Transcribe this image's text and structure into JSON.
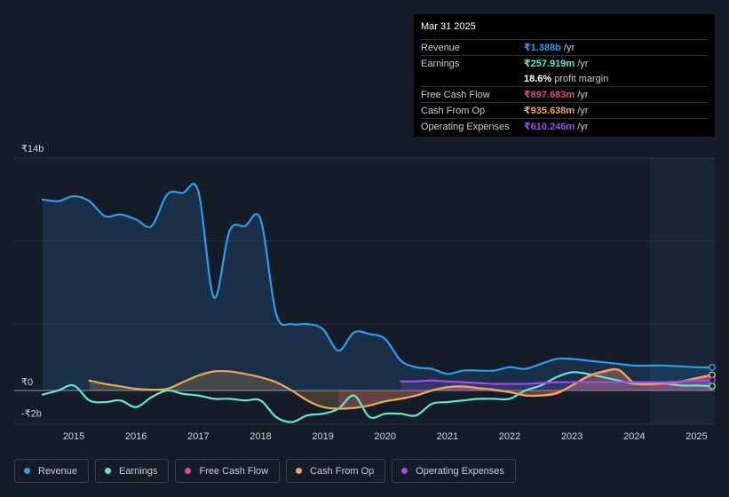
{
  "tooltip": {
    "date": "Mar 31 2025",
    "rows": [
      {
        "label": "Revenue",
        "value": "₹1.388b",
        "unit": "/yr",
        "color": "#2d9bf0"
      },
      {
        "label": "Earnings",
        "value": "₹257.919m",
        "unit": "/yr",
        "color": "#5ee8cf"
      },
      {
        "label": "",
        "value": "18.6%",
        "unit": "profit margin",
        "color": "#ffffff"
      },
      {
        "label": "Free Cash Flow",
        "value": "₹897.683m",
        "unit": "/yr",
        "color": "#d94f86"
      },
      {
        "label": "Cash From Op",
        "value": "₹935.638m",
        "unit": "/yr",
        "color": "#e8a85a"
      },
      {
        "label": "Operating Expenses",
        "value": "₹610.246m",
        "unit": "/yr",
        "color": "#9b4de8"
      }
    ]
  },
  "legend": [
    {
      "label": "Revenue",
      "color": "#2d9bf0"
    },
    {
      "label": "Earnings",
      "color": "#5ee8cf"
    },
    {
      "label": "Free Cash Flow",
      "color": "#d94f86"
    },
    {
      "label": "Cash From Op",
      "color": "#e8a85a"
    },
    {
      "label": "Operating Expenses",
      "color": "#9b4de8"
    }
  ],
  "chart_data": {
    "type": "line",
    "title": "",
    "unit": "₹ billions",
    "y_tick_labels": [
      "₹14b",
      "₹0",
      "-₹2b"
    ],
    "y_ticks": [
      14,
      0,
      -2
    ],
    "ylim": [
      -2,
      14
    ],
    "x_tick_labels": [
      "2015",
      "2016",
      "2017",
      "2018",
      "2019",
      "2020",
      "2021",
      "2022",
      "2023",
      "2024",
      "2025"
    ],
    "x_ticks": [
      2015,
      2016,
      2017,
      2018,
      2019,
      2020,
      2021,
      2022,
      2023,
      2024,
      2025
    ],
    "xlim": [
      2014.5,
      2025.25
    ],
    "highlight_start": 2024.25,
    "series": [
      {
        "name": "Revenue",
        "color": "#2d9bf0",
        "fill": true,
        "points": [
          [
            2014.5,
            11.5
          ],
          [
            2014.75,
            11.4
          ],
          [
            2015.0,
            11.7
          ],
          [
            2015.25,
            11.4
          ],
          [
            2015.5,
            10.5
          ],
          [
            2015.75,
            10.6
          ],
          [
            2016.0,
            10.3
          ],
          [
            2016.25,
            9.9
          ],
          [
            2016.5,
            11.8
          ],
          [
            2016.75,
            11.9
          ],
          [
            2017.0,
            12.0
          ],
          [
            2017.25,
            5.6
          ],
          [
            2017.5,
            9.6
          ],
          [
            2017.75,
            9.9
          ],
          [
            2018.0,
            10.3
          ],
          [
            2018.25,
            4.6
          ],
          [
            2018.5,
            4.0
          ],
          [
            2018.75,
            4.0
          ],
          [
            2019.0,
            3.7
          ],
          [
            2019.25,
            2.4
          ],
          [
            2019.5,
            3.5
          ],
          [
            2019.75,
            3.4
          ],
          [
            2020.0,
            3.1
          ],
          [
            2020.25,
            1.8
          ],
          [
            2020.5,
            1.4
          ],
          [
            2020.75,
            1.3
          ],
          [
            2021.0,
            1.0
          ],
          [
            2021.25,
            1.2
          ],
          [
            2021.5,
            1.2
          ],
          [
            2021.75,
            1.2
          ],
          [
            2022.0,
            1.4
          ],
          [
            2022.25,
            1.3
          ],
          [
            2022.5,
            1.6
          ],
          [
            2022.75,
            1.9
          ],
          [
            2023.0,
            1.9
          ],
          [
            2023.25,
            1.8
          ],
          [
            2023.5,
            1.7
          ],
          [
            2023.75,
            1.6
          ],
          [
            2024.0,
            1.5
          ],
          [
            2024.25,
            1.5
          ],
          [
            2024.5,
            1.5
          ],
          [
            2024.75,
            1.45
          ],
          [
            2025.0,
            1.4
          ],
          [
            2025.25,
            1.39
          ]
        ]
      },
      {
        "name": "Earnings",
        "color": "#5ee8cf",
        "fill": false,
        "points": [
          [
            2014.5,
            -0.25
          ],
          [
            2014.75,
            0.0
          ],
          [
            2015.0,
            0.3
          ],
          [
            2015.25,
            -0.6
          ],
          [
            2015.5,
            -0.7
          ],
          [
            2015.75,
            -0.6
          ],
          [
            2016.0,
            -1.0
          ],
          [
            2016.25,
            -0.4
          ],
          [
            2016.5,
            0.0
          ],
          [
            2016.75,
            -0.2
          ],
          [
            2017.0,
            -0.3
          ],
          [
            2017.25,
            -0.5
          ],
          [
            2017.5,
            -0.5
          ],
          [
            2017.75,
            -0.6
          ],
          [
            2018.0,
            -0.6
          ],
          [
            2018.25,
            -1.6
          ],
          [
            2018.5,
            -1.9
          ],
          [
            2018.75,
            -1.5
          ],
          [
            2019.0,
            -1.4
          ],
          [
            2019.25,
            -1.1
          ],
          [
            2019.5,
            -0.3
          ],
          [
            2019.75,
            -1.6
          ],
          [
            2020.0,
            -1.4
          ],
          [
            2020.25,
            -1.4
          ],
          [
            2020.5,
            -1.5
          ],
          [
            2020.75,
            -0.8
          ],
          [
            2021.0,
            -0.7
          ],
          [
            2021.25,
            -0.6
          ],
          [
            2021.5,
            -0.5
          ],
          [
            2021.75,
            -0.5
          ],
          [
            2022.0,
            -0.5
          ],
          [
            2022.25,
            0.0
          ],
          [
            2022.5,
            0.3
          ],
          [
            2022.75,
            0.8
          ],
          [
            2023.0,
            1.1
          ],
          [
            2023.25,
            1.0
          ],
          [
            2023.5,
            0.8
          ],
          [
            2023.75,
            0.6
          ],
          [
            2024.0,
            0.4
          ],
          [
            2024.25,
            0.4
          ],
          [
            2024.5,
            0.4
          ],
          [
            2024.75,
            0.3
          ],
          [
            2025.0,
            0.3
          ],
          [
            2025.25,
            0.26
          ]
        ]
      },
      {
        "name": "Free Cash Flow",
        "color": "#d94f86",
        "fill": true,
        "points": [
          [
            2019.25,
            -1.1
          ],
          [
            2019.5,
            -1.05
          ],
          [
            2019.75,
            -0.9
          ],
          [
            2020.0,
            -0.65
          ],
          [
            2020.25,
            -0.5
          ],
          [
            2020.5,
            -0.3
          ],
          [
            2020.75,
            0.0
          ],
          [
            2021.0,
            0.2
          ],
          [
            2021.25,
            0.2
          ],
          [
            2021.5,
            0.1
          ],
          [
            2021.75,
            0.0
          ],
          [
            2022.0,
            -0.1
          ],
          [
            2022.25,
            -0.3
          ],
          [
            2022.5,
            -0.3
          ],
          [
            2022.75,
            -0.2
          ],
          [
            2023.0,
            0.3
          ],
          [
            2023.25,
            0.8
          ],
          [
            2023.5,
            1.1
          ],
          [
            2023.75,
            1.2
          ],
          [
            2024.0,
            0.45
          ],
          [
            2024.25,
            0.35
          ],
          [
            2024.5,
            0.4
          ],
          [
            2024.75,
            0.5
          ],
          [
            2025.0,
            0.7
          ],
          [
            2025.25,
            0.9
          ]
        ]
      },
      {
        "name": "Cash From Op",
        "color": "#e8a85a",
        "fill": true,
        "points": [
          [
            2015.25,
            0.6
          ],
          [
            2015.5,
            0.4
          ],
          [
            2015.75,
            0.25
          ],
          [
            2016.0,
            0.1
          ],
          [
            2016.25,
            0.05
          ],
          [
            2016.5,
            0.1
          ],
          [
            2016.75,
            0.5
          ],
          [
            2017.0,
            0.9
          ],
          [
            2017.25,
            1.15
          ],
          [
            2017.5,
            1.15
          ],
          [
            2017.75,
            1.0
          ],
          [
            2018.0,
            0.8
          ],
          [
            2018.25,
            0.5
          ],
          [
            2018.5,
            0.0
          ],
          [
            2018.75,
            -0.6
          ],
          [
            2019.0,
            -1.0
          ],
          [
            2019.25,
            -1.1
          ],
          [
            2019.5,
            -1.05
          ],
          [
            2019.75,
            -0.9
          ],
          [
            2020.0,
            -0.65
          ],
          [
            2020.25,
            -0.5
          ],
          [
            2020.5,
            -0.3
          ],
          [
            2020.75,
            0.0
          ],
          [
            2021.0,
            0.2
          ],
          [
            2021.25,
            0.25
          ],
          [
            2021.5,
            0.15
          ],
          [
            2021.75,
            0.05
          ],
          [
            2022.0,
            -0.1
          ],
          [
            2022.25,
            -0.3
          ],
          [
            2022.5,
            -0.3
          ],
          [
            2022.75,
            -0.15
          ],
          [
            2023.0,
            0.3
          ],
          [
            2023.25,
            0.85
          ],
          [
            2023.5,
            1.15
          ],
          [
            2023.75,
            1.25
          ],
          [
            2024.0,
            0.45
          ],
          [
            2024.25,
            0.4
          ],
          [
            2024.5,
            0.45
          ],
          [
            2024.75,
            0.55
          ],
          [
            2025.0,
            0.75
          ],
          [
            2025.25,
            0.94
          ]
        ]
      },
      {
        "name": "Operating Expenses",
        "color": "#9b4de8",
        "fill": true,
        "points": [
          [
            2020.25,
            0.55
          ],
          [
            2020.5,
            0.55
          ],
          [
            2020.75,
            0.6
          ],
          [
            2021.0,
            0.55
          ],
          [
            2021.25,
            0.5
          ],
          [
            2021.5,
            0.45
          ],
          [
            2021.75,
            0.4
          ],
          [
            2022.0,
            0.4
          ],
          [
            2022.25,
            0.4
          ],
          [
            2022.5,
            0.45
          ],
          [
            2022.75,
            0.5
          ],
          [
            2023.0,
            0.5
          ],
          [
            2023.25,
            0.5
          ],
          [
            2023.5,
            0.5
          ],
          [
            2023.75,
            0.5
          ],
          [
            2024.0,
            0.5
          ],
          [
            2024.25,
            0.5
          ],
          [
            2024.5,
            0.5
          ],
          [
            2024.75,
            0.55
          ],
          [
            2025.0,
            0.6
          ],
          [
            2025.25,
            0.61
          ]
        ]
      }
    ]
  }
}
